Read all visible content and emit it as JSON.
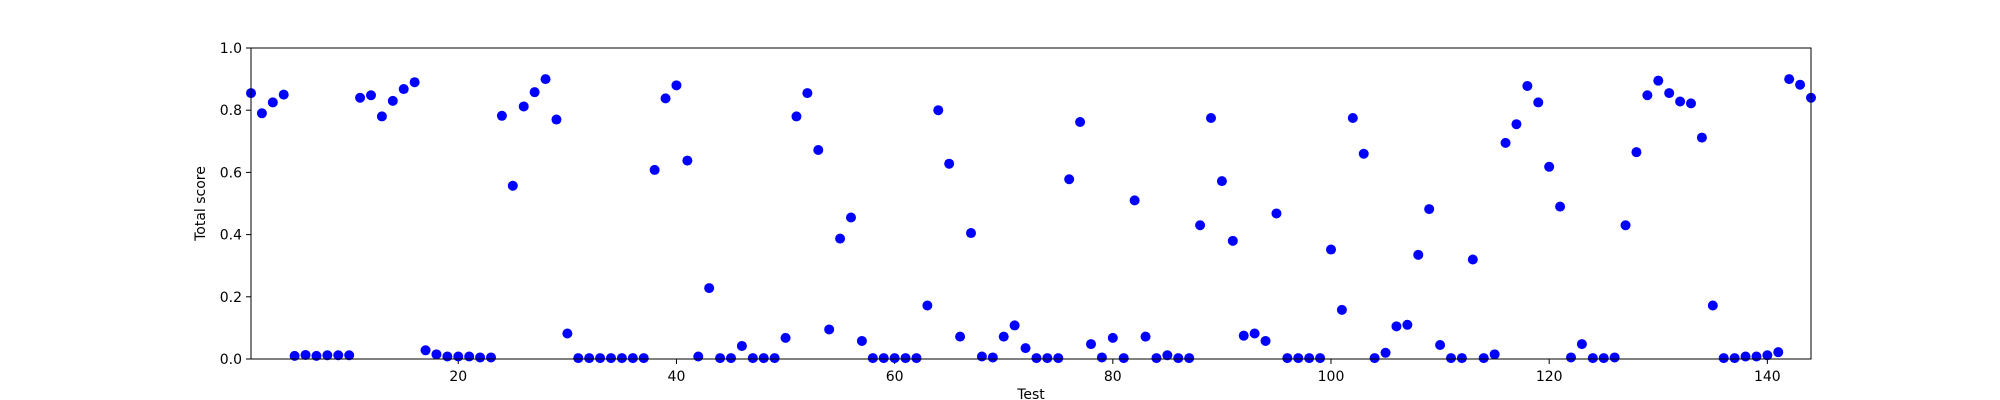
{
  "chart_data": {
    "type": "scatter",
    "title": "",
    "xlabel": "Test",
    "ylabel": "Total score",
    "xlim": [
      1,
      144
    ],
    "ylim": [
      0,
      1.0
    ],
    "x_ticks": [
      20,
      40,
      60,
      80,
      100,
      120,
      140
    ],
    "x_tick_labels": [
      "20",
      "40",
      "60",
      "80",
      "100",
      "120",
      "140"
    ],
    "y_ticks": [
      0.0,
      0.2,
      0.4,
      0.6,
      0.8,
      1.0
    ],
    "y_tick_labels": [
      "0.0",
      "0.2",
      "0.4",
      "0.6",
      "0.8",
      "1.0"
    ],
    "grid": false,
    "marker_color": "#0000ff",
    "series": [
      {
        "x": [
          1,
          2,
          3,
          4,
          5,
          6,
          7,
          8,
          9,
          10,
          11,
          12,
          13,
          14,
          15,
          16,
          17,
          18,
          19,
          20,
          21,
          22,
          23,
          24,
          25,
          26,
          27,
          28,
          29,
          30,
          31,
          32,
          33,
          34,
          35,
          36,
          37,
          38,
          39,
          40,
          41,
          42,
          43,
          44,
          45,
          46,
          47,
          48,
          49,
          50,
          51,
          52,
          53,
          54,
          55,
          56,
          57,
          58,
          59,
          60,
          61,
          62,
          63,
          64,
          65,
          66,
          67,
          68,
          69,
          70,
          71,
          72,
          73,
          74,
          75,
          76,
          77,
          78,
          79,
          80,
          81,
          82,
          83,
          84,
          85,
          86,
          87,
          88,
          89,
          90,
          91,
          92,
          93,
          94,
          95,
          96,
          97,
          98,
          99,
          100,
          101,
          102,
          103,
          104,
          105,
          106,
          107,
          108,
          109,
          110,
          111,
          112,
          113,
          114,
          115,
          116,
          117,
          118,
          119,
          120,
          121,
          122,
          123,
          124,
          125,
          126,
          127,
          128,
          129,
          130,
          131,
          132,
          133,
          134,
          135,
          136,
          137,
          138,
          139,
          140,
          141,
          142,
          143,
          144
        ],
        "y": [
          0.855,
          0.79,
          0.825,
          0.85,
          0.01,
          0.013,
          0.01,
          0.012,
          0.012,
          0.012,
          0.84,
          0.848,
          0.78,
          0.83,
          0.868,
          0.89,
          0.028,
          0.015,
          0.008,
          0.008,
          0.008,
          0.005,
          0.005,
          0.782,
          0.557,
          0.812,
          0.858,
          0.9,
          0.77,
          0.082,
          0.003,
          0.003,
          0.003,
          0.003,
          0.003,
          0.003,
          0.003,
          0.608,
          0.838,
          0.88,
          0.638,
          0.008,
          0.228,
          0.003,
          0.003,
          0.042,
          0.003,
          0.003,
          0.003,
          0.068,
          0.78,
          0.855,
          0.672,
          0.095,
          0.387,
          0.455,
          0.058,
          0.003,
          0.003,
          0.003,
          0.003,
          0.003,
          0.172,
          0.8,
          0.628,
          0.072,
          0.405,
          0.008,
          0.005,
          0.072,
          0.108,
          0.035,
          0.003,
          0.003,
          0.003,
          0.578,
          0.762,
          0.048,
          0.005,
          0.068,
          0.003,
          0.51,
          0.072,
          0.003,
          0.012,
          0.003,
          0.003,
          0.43,
          0.775,
          0.572,
          0.38,
          0.075,
          0.082,
          0.058,
          0.468,
          0.003,
          0.003,
          0.003,
          0.003,
          0.352,
          0.158,
          0.775,
          0.66,
          0.003,
          0.02,
          0.105,
          0.11,
          0.335,
          0.482,
          0.045,
          0.003,
          0.003,
          0.32,
          0.003,
          0.015,
          0.695,
          0.755,
          0.878,
          0.825,
          0.618,
          0.49,
          0.005,
          0.048,
          0.003,
          0.003,
          0.005,
          0.43,
          0.665,
          0.848,
          0.895,
          0.855,
          0.828,
          0.822,
          0.712,
          0.172,
          0.003,
          0.003,
          0.008,
          0.008,
          0.012,
          0.022,
          0.9,
          0.882,
          0.84
        ]
      }
    ]
  }
}
